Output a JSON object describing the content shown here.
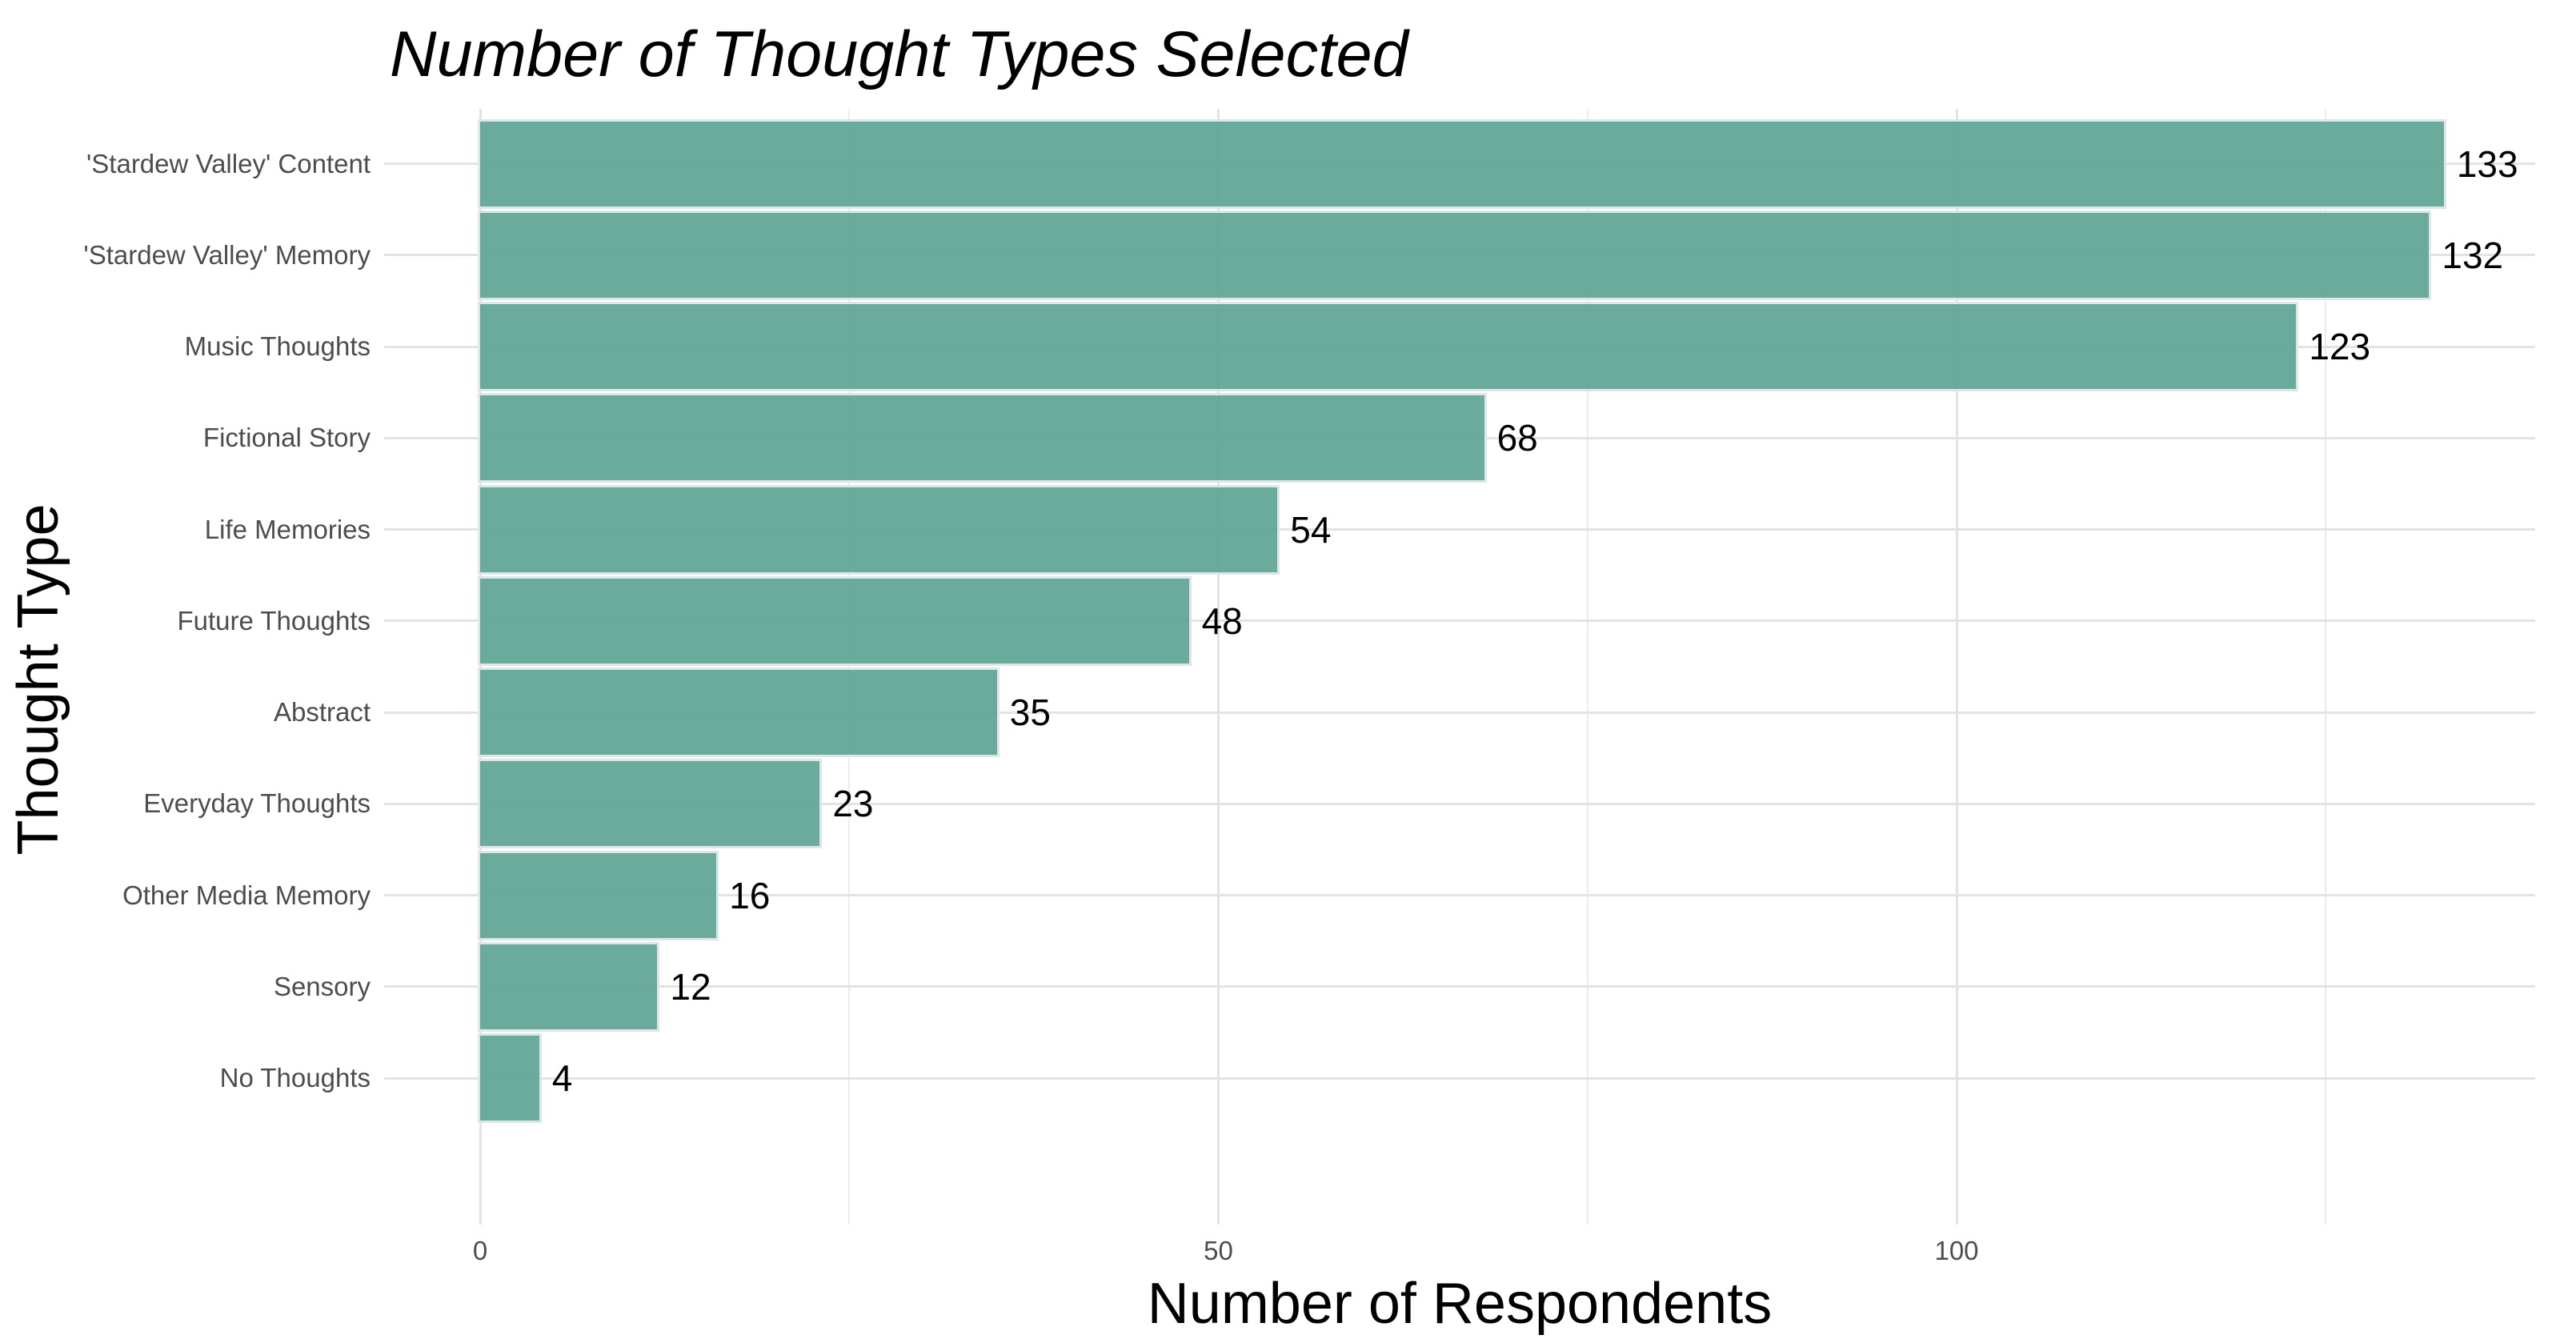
{
  "title": "Number of Thought Types Selected",
  "chart_data": {
    "type": "bar",
    "orientation": "horizontal",
    "title": "Number of Thought Types Selected",
    "xlabel": "Number of Respondents",
    "ylabel": "Thought Type",
    "categories": [
      "'Stardew Valley' Content",
      "'Stardew Valley' Memory",
      "Music Thoughts",
      "Fictional Story",
      "Life Memories",
      "Future Thoughts",
      "Abstract",
      "Everyday Thoughts",
      "Other Media Memory",
      "Sensory",
      "No Thoughts"
    ],
    "values": [
      133,
      132,
      123,
      68,
      54,
      48,
      35,
      23,
      16,
      12,
      4
    ],
    "bar_labels": [
      "133",
      "132",
      "123",
      "68",
      "54",
      "48",
      "35",
      "23",
      "16",
      "12",
      "4"
    ],
    "x_tick_labels": [
      "0",
      "50",
      "100"
    ],
    "x_tick_values": [
      0,
      50,
      100
    ],
    "x_minor_gridline_values": [
      25,
      75,
      125
    ],
    "xlim": [
      0,
      139.6
    ],
    "grid": "major and minor vertical, major horizontal at category centers",
    "legend": "none",
    "colors": {
      "bar_fill": "#68ab9a",
      "bar_border": "#dbe7e9",
      "grid_major": "#e3e3e3",
      "grid_minor": "#ececec",
      "axis_text": "#4d4d4d",
      "value_text": "#000000",
      "title_text": "#000000",
      "background": "#ffffff"
    }
  }
}
